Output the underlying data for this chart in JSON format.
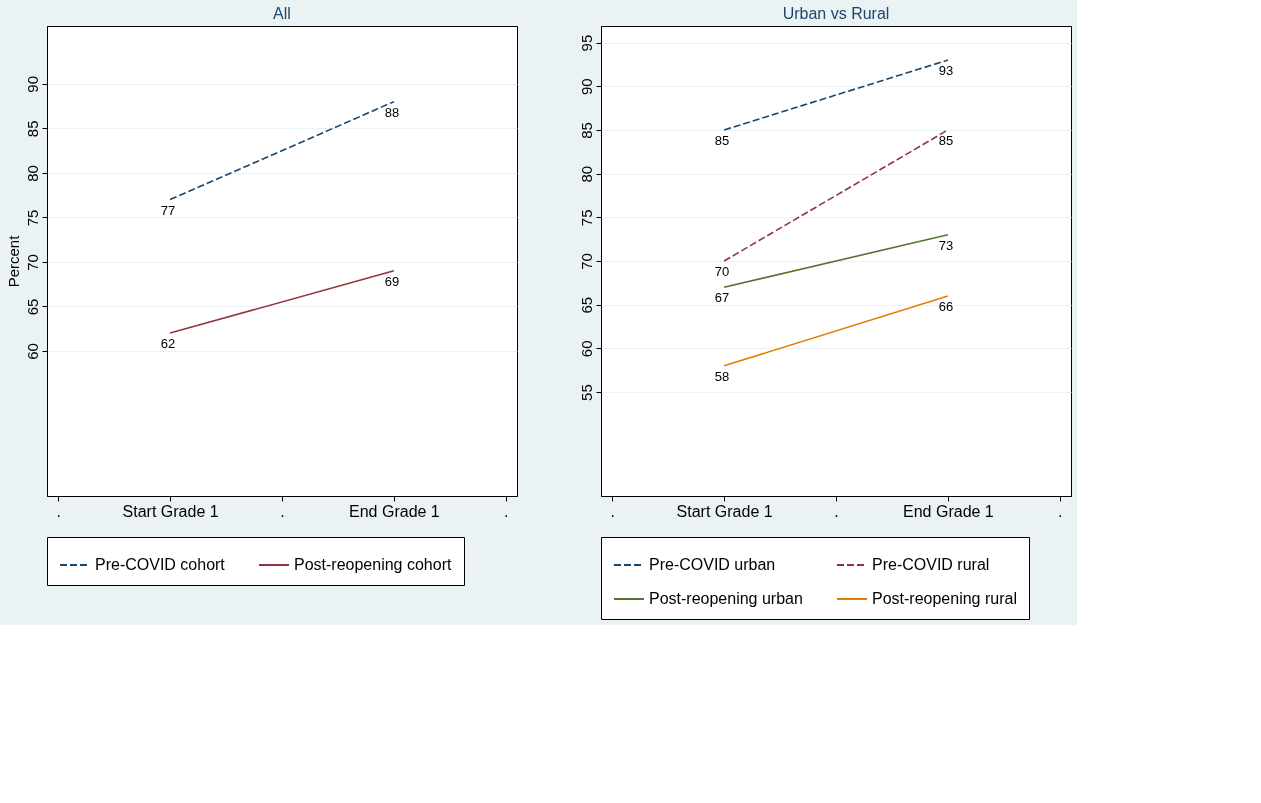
{
  "chart_data": [
    {
      "type": "line",
      "title": "All",
      "ylabel": "Percent",
      "categories": [
        ".",
        "Start Grade 1",
        ".",
        "End Grade 1",
        "."
      ],
      "ylim": [
        43.7,
        96.5
      ],
      "yticks": [
        60,
        65,
        70,
        75,
        80,
        85,
        90
      ],
      "grid": "y",
      "legend": "bottom",
      "data_labels": true,
      "marker": "none",
      "series": [
        {
          "name": "Pre-COVID cohort",
          "color": "#1a476f",
          "line_style": "dashed",
          "values": [
            null,
            77,
            null,
            88,
            null
          ]
        },
        {
          "name": "Post-reopening cohort",
          "color": "#90353b",
          "line_style": "solid",
          "values": [
            null,
            62,
            null,
            69,
            null
          ]
        }
      ]
    },
    {
      "type": "line",
      "title": "Urban vs Rural",
      "categories": [
        ".",
        "Start Grade 1",
        ".",
        "End Grade 1",
        "."
      ],
      "ylim": [
        43.1,
        96.9
      ],
      "yticks": [
        55,
        60,
        65,
        70,
        75,
        80,
        85,
        90,
        95
      ],
      "grid": "y",
      "legend": "bottom",
      "data_labels": true,
      "marker": "none",
      "series": [
        {
          "name": "Pre-COVID urban",
          "color": "#1a476f",
          "line_style": "dashed",
          "values": [
            null,
            85,
            null,
            93,
            null
          ]
        },
        {
          "name": "Pre-COVID  rural",
          "color": "#90353b",
          "line_style": "dashed",
          "values": [
            null,
            70,
            null,
            85,
            null
          ]
        },
        {
          "name": "Post-reopening urban",
          "color": "#55752f",
          "line_style": "solid",
          "values": [
            null,
            67,
            null,
            73,
            null
          ]
        },
        {
          "name": "Post-reopening rural",
          "color": "#e37e00",
          "line_style": "solid",
          "values": [
            null,
            58,
            null,
            66,
            null
          ]
        }
      ]
    }
  ]
}
